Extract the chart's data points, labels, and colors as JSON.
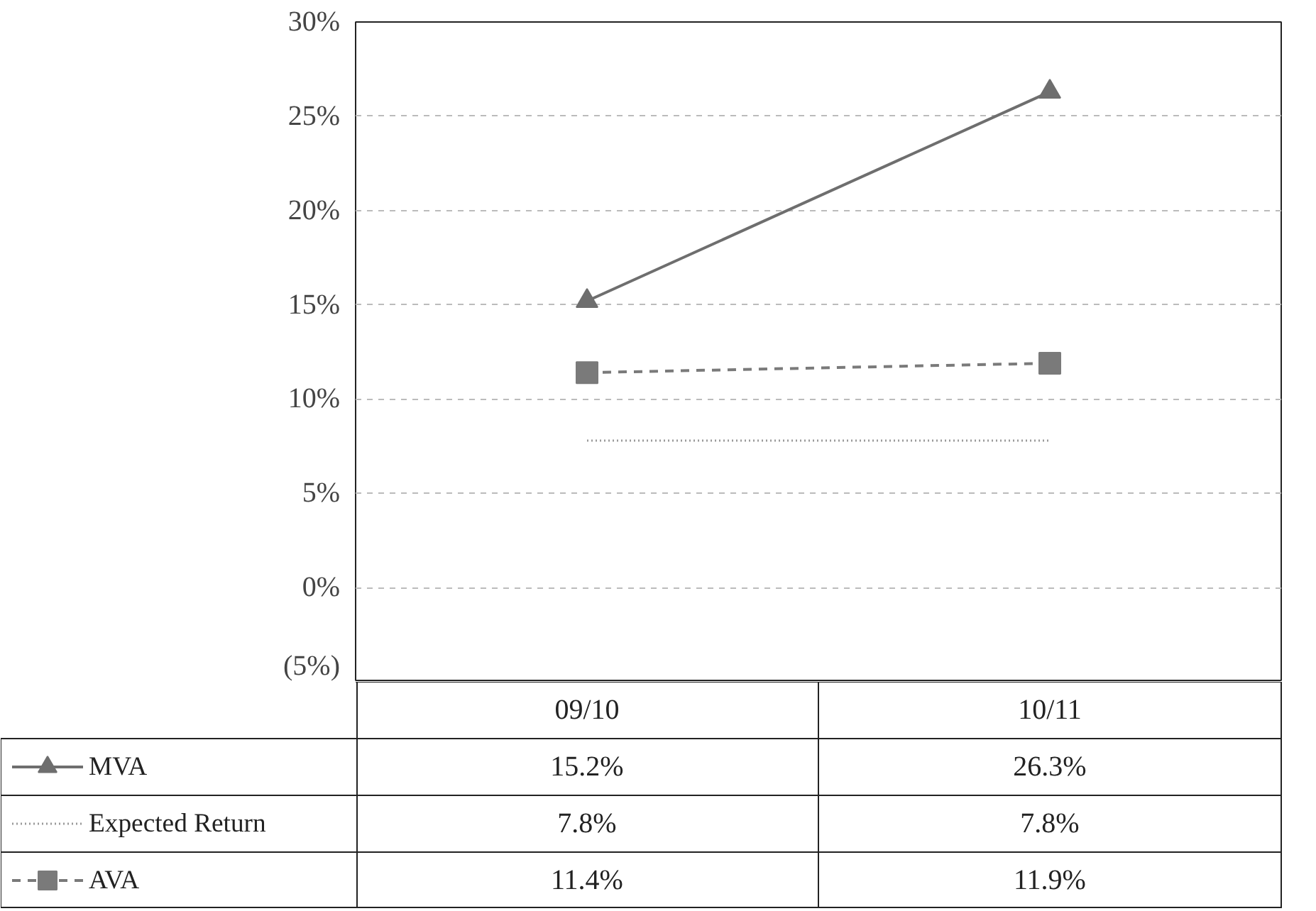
{
  "chart_data": {
    "type": "line",
    "categories": [
      "09/10",
      "10/11"
    ],
    "ylim": [
      -5,
      30
    ],
    "yticks": [
      {
        "value": -5,
        "label": "(5%)"
      },
      {
        "value": 0,
        "label": "0%"
      },
      {
        "value": 5,
        "label": "5%"
      },
      {
        "value": 10,
        "label": "10%"
      },
      {
        "value": 15,
        "label": "15%"
      },
      {
        "value": 20,
        "label": "20%"
      },
      {
        "value": 25,
        "label": "25%"
      },
      {
        "value": 30,
        "label": "30%"
      }
    ],
    "grid": "y",
    "legend": "bottom",
    "series": [
      {
        "name": "MVA",
        "color": "#6e6e6e",
        "values": [
          15.2,
          26.3
        ],
        "value_labels": [
          "15.2%",
          "26.3%"
        ],
        "marker": "triangle",
        "line_style": "solid"
      },
      {
        "name": "Expected Return",
        "color": "#9a9a9a",
        "values": [
          7.8,
          7.8
        ],
        "value_labels": [
          "7.8%",
          "7.8%"
        ],
        "marker": "none",
        "line_style": "dotted"
      },
      {
        "name": "AVA",
        "color": "#7a7a7a",
        "values": [
          11.4,
          11.9
        ],
        "value_labels": [
          "11.4%",
          "11.9%"
        ],
        "marker": "square",
        "line_style": "dashed"
      }
    ]
  }
}
